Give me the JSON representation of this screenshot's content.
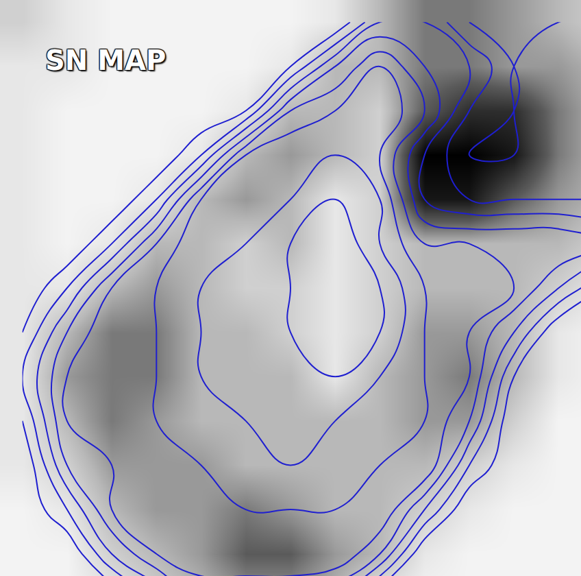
{
  "chart_data": {
    "type": "contour_map",
    "title": "SN MAP",
    "tick_labels": false,
    "grid": false,
    "image": {
      "zlim": [
        0,
        10
      ],
      "cells": [
        [
          2,
          1,
          0.5,
          0.5,
          0.5,
          0.5,
          0.5,
          1,
          3,
          5,
          5,
          4,
          3,
          2
        ],
        [
          1,
          1,
          0.5,
          0.5,
          0.5,
          0.5,
          1,
          3,
          3,
          5,
          5,
          4,
          4,
          3
        ],
        [
          1,
          0.5,
          0.5,
          0.5,
          0.5,
          1,
          3,
          3,
          2,
          6,
          8,
          8,
          5,
          3
        ],
        [
          1,
          0.5,
          0.5,
          0.5,
          1,
          3,
          4,
          3,
          2,
          10,
          10,
          9,
          5,
          3
        ],
        [
          1,
          0.5,
          0.5,
          1,
          3,
          4,
          3,
          1,
          2,
          9,
          9,
          6,
          4,
          3
        ],
        [
          1,
          0.5,
          1,
          3,
          3,
          2,
          3,
          1,
          2,
          3,
          3,
          3,
          3,
          2
        ],
        [
          1,
          1,
          3,
          4,
          3,
          2,
          2,
          1,
          2,
          3,
          3,
          3,
          2,
          1
        ],
        [
          1,
          3,
          5,
          5,
          3,
          3,
          2,
          1,
          2,
          4,
          4,
          3,
          1,
          0.5
        ],
        [
          1,
          4,
          5,
          5,
          3,
          3,
          3,
          1,
          3,
          4,
          5,
          3,
          1,
          0.5
        ],
        [
          1,
          3,
          5,
          4,
          3,
          3,
          3,
          3,
          3,
          4,
          4,
          2,
          0.5,
          0.5
        ],
        [
          1,
          2,
          4,
          4,
          4,
          3,
          3,
          3,
          3,
          3,
          2,
          1,
          0.5,
          0.5
        ],
        [
          0.5,
          1,
          3,
          4,
          4,
          5,
          4,
          3,
          3,
          2,
          1,
          0.5,
          0.5,
          0.5
        ],
        [
          0.5,
          0.5,
          2,
          3,
          4,
          6,
          6,
          4,
          3,
          1,
          0.5,
          0.5,
          0.5,
          0.5
        ],
        [
          0.5,
          0.5,
          1,
          2,
          3,
          4,
          4,
          3,
          1,
          0.5,
          0.5,
          0.5,
          0.5,
          0.5
        ]
      ]
    },
    "contours": {
      "color": "#1f1fd0",
      "levels": [
        1,
        2,
        3,
        4,
        5,
        6,
        7,
        8,
        9
      ],
      "cells": [
        [
          0,
          0,
          0,
          0,
          0,
          0,
          0,
          0,
          3,
          3,
          1,
          1,
          1,
          1
        ],
        [
          0,
          0,
          0,
          0,
          0,
          0,
          1,
          4,
          6,
          4,
          3,
          1,
          2,
          2
        ],
        [
          0,
          0,
          0,
          0,
          0,
          1,
          5,
          6,
          7,
          5,
          2,
          1,
          2,
          2
        ],
        [
          0,
          0,
          0,
          0,
          2,
          6,
          7,
          7,
          6,
          3,
          1,
          1,
          2,
          2
        ],
        [
          0,
          0,
          0,
          2,
          6,
          7,
          7,
          8,
          7,
          3,
          2,
          2,
          2,
          2
        ],
        [
          0,
          0,
          2,
          5,
          7,
          7,
          8,
          9,
          7,
          5,
          5,
          5,
          5,
          4
        ],
        [
          0,
          2,
          5,
          6,
          7,
          8,
          8,
          9,
          8,
          6,
          6,
          5,
          3,
          1
        ],
        [
          1,
          4,
          6,
          6,
          7,
          8,
          8,
          9,
          8,
          6,
          5,
          3,
          0,
          0
        ],
        [
          2,
          5,
          6,
          6,
          7,
          8,
          8,
          8,
          7,
          6,
          5,
          1,
          0,
          0
        ],
        [
          1,
          5,
          6,
          6,
          7,
          7,
          8,
          7,
          7,
          6,
          4,
          0,
          0,
          0
        ],
        [
          0,
          4,
          5,
          6,
          6,
          7,
          7,
          7,
          6,
          6,
          2,
          0,
          0,
          0
        ],
        [
          0,
          2,
          5,
          6,
          6,
          6,
          6,
          6,
          6,
          3,
          0,
          0,
          0,
          0
        ],
        [
          0,
          0,
          3,
          5,
          6,
          6,
          6,
          6,
          4,
          0,
          0,
          0,
          0,
          0
        ],
        [
          0,
          0,
          0,
          2,
          4,
          4,
          4,
          3,
          0,
          0,
          0,
          0,
          0,
          0
        ]
      ]
    }
  }
}
